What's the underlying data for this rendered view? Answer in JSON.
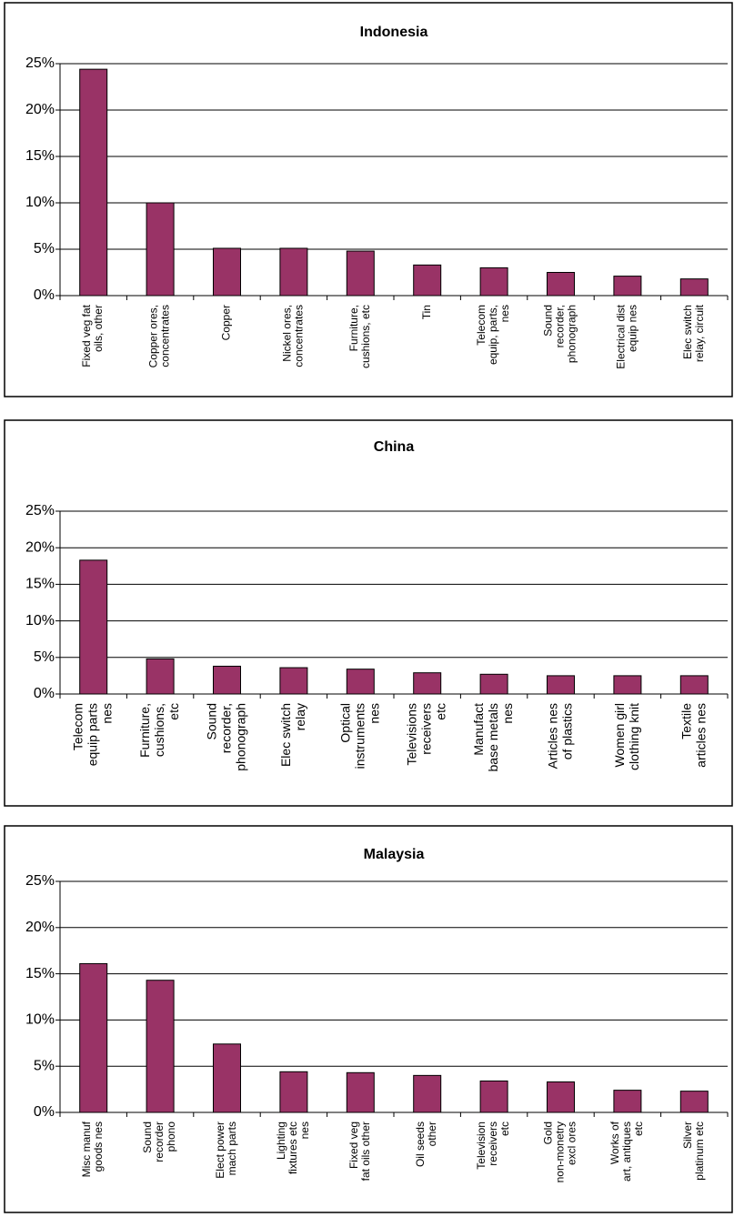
{
  "chart_data": [
    {
      "type": "bar",
      "title": "Indonesia",
      "categories": [
        "Fixed veg fat\noils, other",
        "Copper ores,\nconcentrates",
        "Copper",
        "Nickel ores,\nconcentrates",
        "Furniture,\ncushions, etc",
        "Tin",
        "Telecom\nequip, parts,\nnes",
        "Sound\nrecorder,\nphonograph",
        "Electrical dist\nequip nes",
        "Elec switch\nrelay, circuit"
      ],
      "values": [
        24.4,
        10,
        5.1,
        5.1,
        4.8,
        3.3,
        3.0,
        2.5,
        2.1,
        1.8
      ],
      "color": "#993366",
      "ylim": [
        0,
        25
      ],
      "yticks": [
        {
          "value": 0,
          "label": "0%"
        },
        {
          "value": 5,
          "label": "5%"
        },
        {
          "value": 10,
          "label": "10%"
        },
        {
          "value": 15,
          "label": "15%"
        },
        {
          "value": 20,
          "label": "20%"
        },
        {
          "value": 25,
          "label": "25%"
        }
      ],
      "grid": true
    },
    {
      "type": "bar",
      "title": "China",
      "categories": [
        "Telecom\nequip parts\nnes",
        "Furniture,\ncushions,\netc",
        "Sound\nrecorder,\nphonograph",
        "Elec switch\nrelay",
        "Optical\ninstruments\nnes",
        "Televisions\nreceivers\netc",
        "Manufact\nbase metals\nnes",
        "Articles nes\nof plastics",
        "Women girl\nclothing knit",
        "Textile\narticles nes"
      ],
      "values": [
        18.3,
        4.8,
        3.8,
        3.6,
        3.4,
        2.9,
        2.7,
        2.5,
        2.5,
        2.5
      ],
      "color": "#993366",
      "ylim": [
        0,
        25
      ],
      "yticks": [
        {
          "value": 0,
          "label": "0%"
        },
        {
          "value": 5,
          "label": "5%"
        },
        {
          "value": 10,
          "label": "10%"
        },
        {
          "value": 15,
          "label": "15%"
        },
        {
          "value": 20,
          "label": "20%"
        },
        {
          "value": 25,
          "label": "25%"
        }
      ],
      "grid": true
    },
    {
      "type": "bar",
      "title": "Malaysia",
      "categories": [
        "Misc manuf\ngoods nes",
        "Sound\nrecorder\nphono",
        "Elect power\nmach parts",
        "Lighting\nfixtures etc\nnes",
        "Fixed veg\nfat oils other",
        "Oil seeds\nother",
        "Television\nreceivers\netc",
        "Gold\nnon-monetry\nexcl ores",
        "Works of\nart, antiques\netc",
        "Silver\nplatinum etc"
      ],
      "values": [
        16.1,
        14.3,
        7.4,
        4.4,
        4.3,
        4.0,
        3.4,
        3.3,
        2.4,
        2.3
      ],
      "color": "#993366",
      "ylim": [
        0,
        25
      ],
      "yticks": [
        {
          "value": 0,
          "label": "0%"
        },
        {
          "value": 5,
          "label": "5%"
        },
        {
          "value": 10,
          "label": "10%"
        },
        {
          "value": 15,
          "label": "15%"
        },
        {
          "value": 20,
          "label": "20%"
        },
        {
          "value": 25,
          "label": "25%"
        }
      ],
      "grid": true
    }
  ]
}
